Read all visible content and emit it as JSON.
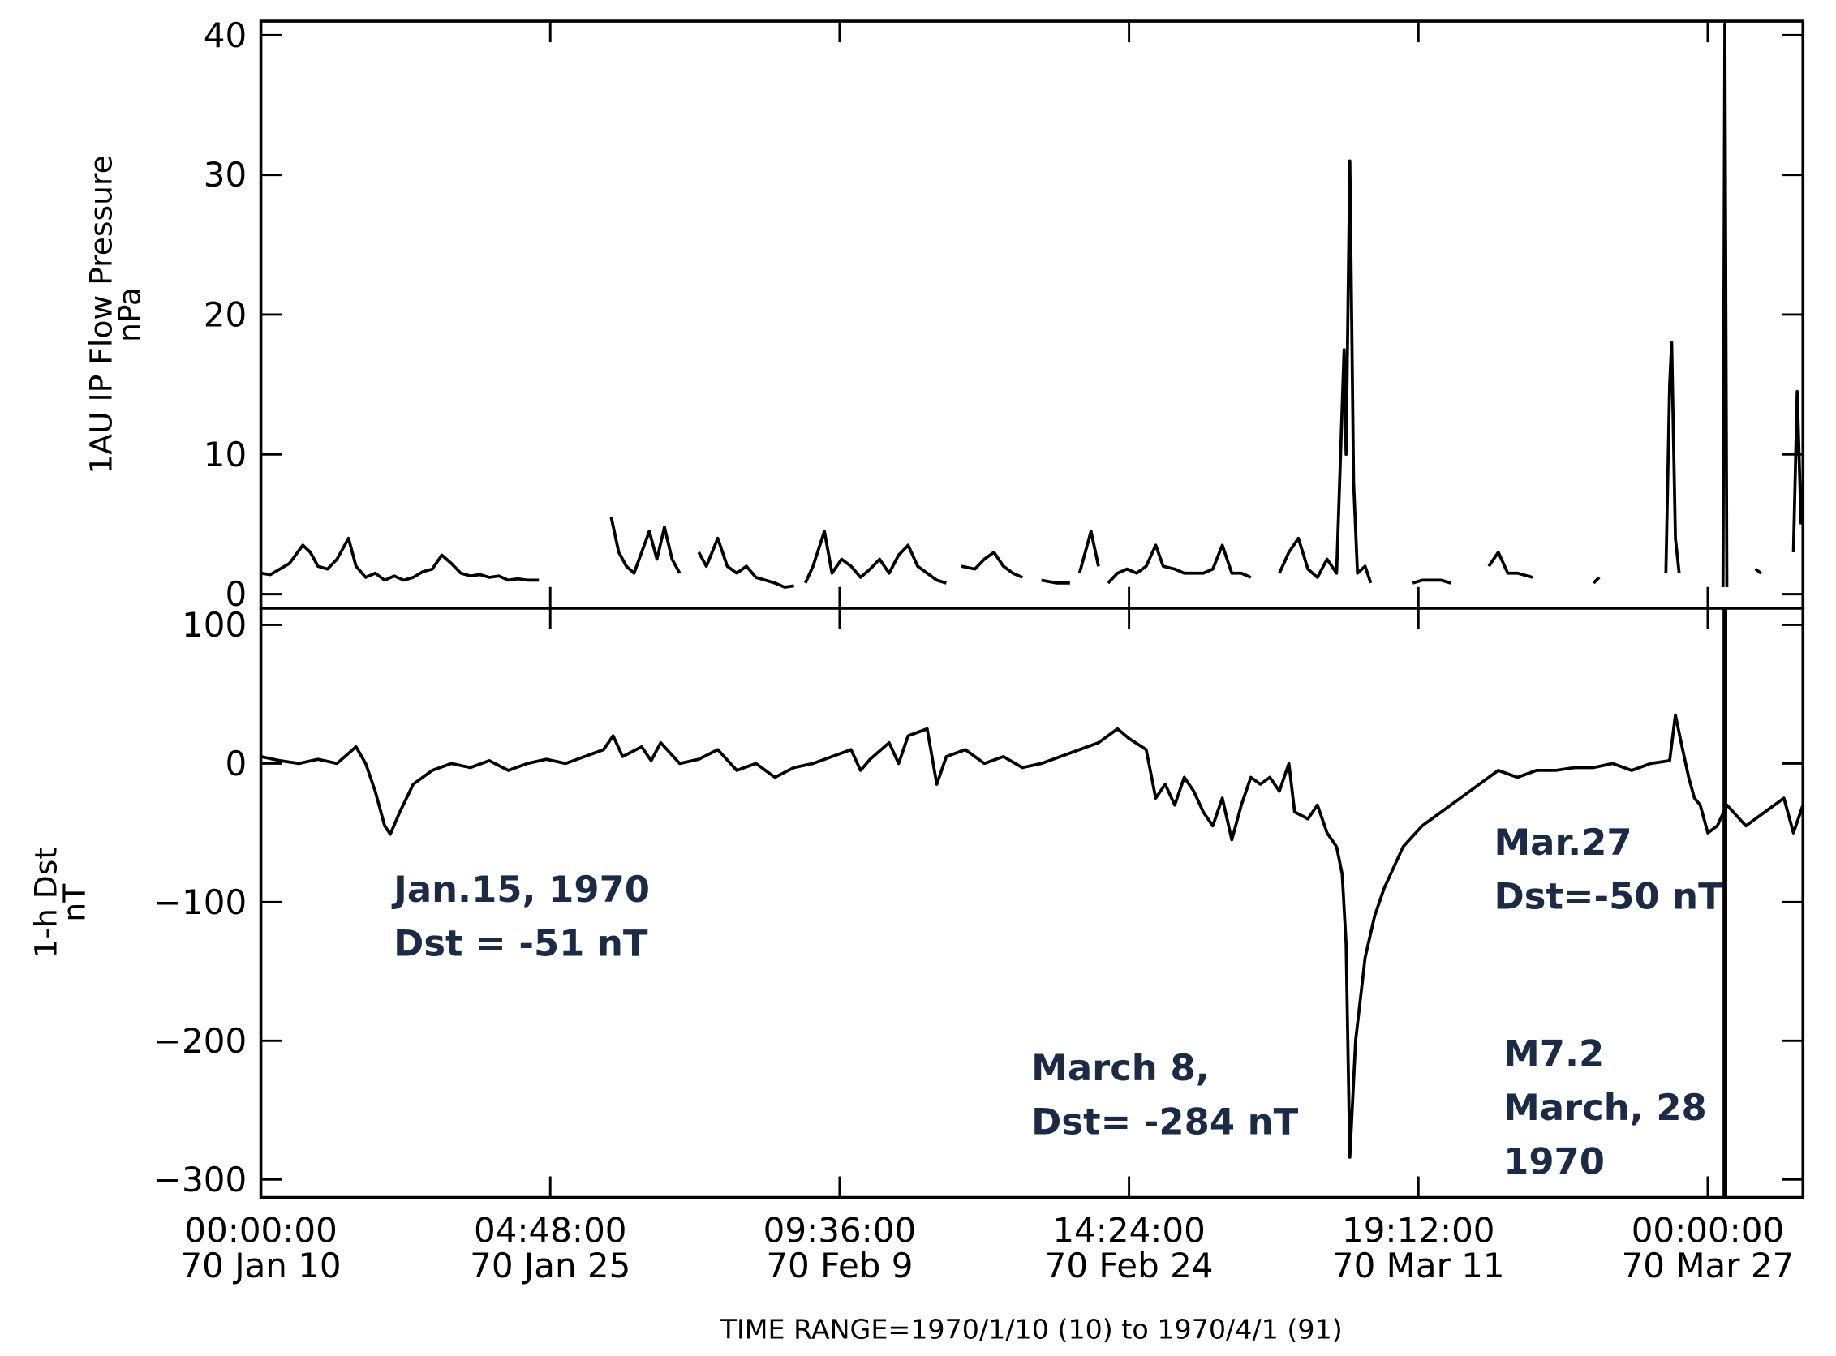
{
  "chart_data": [
    {
      "type": "line",
      "y_label": "1AU IP Flow Pressure\nnPa",
      "color": "#000000",
      "xlim": [
        10,
        91
      ],
      "ylim": [
        -1,
        41
      ],
      "yticks": [
        0,
        10,
        20,
        30,
        40
      ],
      "x": [
        10.0,
        10.5,
        11.0,
        11.5,
        12.2,
        12.6,
        13.0,
        13.5,
        14.0,
        14.6,
        15.0,
        15.5,
        16.0,
        16.5,
        17.0,
        17.5,
        18.0,
        18.5,
        19.0,
        19.5,
        20.0,
        20.5,
        21.0,
        21.5,
        22.0,
        22.5,
        23.0,
        23.5,
        24.0,
        24.6,
        26.5,
        28.4,
        28.8,
        29.2,
        29.6,
        30.0,
        30.4,
        30.8,
        31.2,
        31.6,
        32.0,
        32.5,
        33.0,
        33.4,
        34.0,
        34.5,
        35.0,
        35.5,
        36.0,
        36.5,
        37.0,
        37.5,
        38.0,
        38.3,
        38.6,
        39.0,
        39.6,
        40.0,
        40.5,
        41.0,
        41.5,
        42.0,
        42.5,
        43.0,
        43.5,
        44.0,
        44.5,
        45.0,
        45.5,
        46.0,
        46.4,
        46.8,
        47.5,
        48.0,
        48.5,
        49.0,
        49.5,
        50.0,
        50.5,
        51.0,
        51.8,
        52.5,
        52.8,
        53.0,
        53.3,
        53.6,
        54.0,
        54.2,
        54.5,
        55.0,
        55.5,
        56.0,
        56.5,
        57.0,
        57.4,
        58.0,
        58.5,
        59.0,
        59.5,
        60.0,
        60.5,
        61.0,
        61.5,
        62.0,
        62.8,
        63.5,
        64.0,
        64.5,
        65.0,
        65.5,
        66.0,
        66.5,
        66.9,
        67.0,
        67.2,
        67.4,
        67.6,
        68.0,
        68.3,
        69.5,
        70.5,
        71.0,
        72.0,
        72.5,
        73.5,
        74.5,
        75.0,
        75.5,
        76.0,
        76.8,
        77.4,
        78.0,
        79.0,
        80.0,
        80.3,
        81.0,
        81.6,
        82.7,
        83.8,
        84.0,
        84.1,
        84.3,
        84.5,
        85.6,
        86.8,
        86.9,
        87.0,
        87.8,
        88.5,
        88.8,
        89.6,
        90.5,
        90.7,
        90.9
      ],
      "values": [
        1.5,
        1.4,
        1.8,
        2.2,
        3.5,
        3.0,
        2.0,
        1.8,
        2.5,
        4.0,
        2.0,
        1.2,
        1.5,
        1.0,
        1.3,
        1.0,
        1.2,
        1.6,
        1.8,
        2.8,
        2.2,
        1.5,
        1.3,
        1.4,
        1.2,
        1.3,
        1.0,
        1.1,
        1.0,
        1.0,
        null,
        5.5,
        3.0,
        2.0,
        1.5,
        3.0,
        4.5,
        2.5,
        4.8,
        2.5,
        1.5,
        null,
        3.0,
        2.0,
        4.0,
        2.0,
        1.5,
        2.0,
        1.2,
        1.0,
        0.8,
        0.5,
        0.6,
        null,
        0.8,
        2.0,
        4.5,
        1.5,
        2.5,
        2.0,
        1.2,
        1.8,
        2.5,
        1.5,
        2.8,
        3.5,
        2.0,
        1.5,
        1.0,
        0.8,
        null,
        2.0,
        1.8,
        2.5,
        3.0,
        2.0,
        1.5,
        1.2,
        null,
        1.0,
        0.8,
        0.8,
        null,
        1.5,
        3.0,
        4.5,
        2.0,
        null,
        0.8,
        1.5,
        1.8,
        1.5,
        2.0,
        3.5,
        2.0,
        1.8,
        1.5,
        1.5,
        1.5,
        1.8,
        3.5,
        1.5,
        1.5,
        1.2,
        null,
        1.5,
        3.0,
        4.0,
        1.8,
        1.2,
        2.5,
        1.5,
        17.5,
        10.0,
        31.0,
        8.0,
        1.5,
        2.0,
        0.8,
        null,
        0.8,
        1.0,
        1.0,
        0.8,
        null,
        2.0,
        3.0,
        1.5,
        1.5,
        1.2,
        null,
        0.5,
        null,
        0.8,
        1.2,
        null,
        1.5,
        null,
        1.5,
        15.0,
        18.0,
        4.0,
        1.5,
        null,
        0.5,
        40.8,
        0.5,
        null,
        1.8,
        1.5,
        null,
        3.0,
        14.5,
        5.0
      ]
    },
    {
      "type": "line",
      "y_label": "1-h Dst\nnT",
      "x_label": "TIME RANGE=1970/1/10 (10) to 1970/4/1 (91)",
      "color": "#000000",
      "xlim": [
        10,
        91
      ],
      "ylim": [
        -313,
        112
      ],
      "yticks": [
        {
          "value": -300,
          "label": "−300"
        },
        {
          "value": -200,
          "label": "−200"
        },
        {
          "value": -100,
          "label": "−100"
        },
        0,
        100
      ],
      "xticks": [
        {
          "value": 10,
          "label": "00:00:00\n70 Jan 10"
        },
        {
          "value": 25.2,
          "label": "04:48:00\n70 Jan 25"
        },
        {
          "value": 40.4,
          "label": "09:36:00\n70 Feb  9"
        },
        {
          "value": 55.6,
          "label": "14:24:00\n70 Feb 24"
        },
        {
          "value": 70.8,
          "label": "19:12:00\n70 Mar 11"
        },
        {
          "value": 86,
          "label": "00:00:00\n70 Mar 27"
        }
      ],
      "event_lines": [
        86.9
      ],
      "annotations": [
        [
          "Jan.15, 1970",
          "Dst = -51 nT"
        ],
        [
          "March 8,",
          "Dst= -284 nT"
        ],
        [
          "Mar.27",
          "Dst=-50 nT"
        ],
        [
          "M7.2",
          "March, 28",
          "1970"
        ]
      ],
      "x": [
        10,
        11,
        12,
        13,
        14,
        15,
        15.5,
        16,
        16.5,
        16.8,
        17.3,
        18,
        19,
        20,
        21,
        22,
        23,
        24,
        25,
        26,
        27,
        28,
        28.5,
        29,
        30,
        30.5,
        31,
        32,
        33,
        34,
        35,
        36,
        37,
        38,
        39,
        40,
        41,
        41.5,
        42,
        43,
        43.5,
        44,
        45,
        45.5,
        46,
        47,
        48,
        49,
        50,
        51,
        52,
        53,
        54,
        55,
        55.6,
        56.5,
        57,
        57.5,
        58,
        58.5,
        59,
        59.5,
        60,
        60.5,
        61,
        61.5,
        62,
        62.5,
        63,
        63.5,
        64,
        64.3,
        65,
        65.5,
        66,
        66.5,
        66.8,
        67.0,
        67.2,
        67.5,
        68,
        68.5,
        69,
        69.5,
        70,
        71,
        72,
        73,
        74,
        75,
        76,
        77,
        78,
        79,
        80,
        81,
        82,
        83,
        84,
        84.3,
        84.6,
        85,
        85.3,
        85.6,
        86,
        86.5,
        87,
        88,
        89,
        90,
        90.5,
        91
      ],
      "values": [
        5,
        2,
        0,
        3,
        0,
        12,
        0,
        -20,
        -45,
        -51,
        -35,
        -15,
        -5,
        0,
        -3,
        2,
        -5,
        0,
        3,
        0,
        5,
        10,
        20,
        5,
        12,
        2,
        15,
        0,
        3,
        10,
        -5,
        0,
        -10,
        -3,
        0,
        5,
        10,
        -5,
        3,
        15,
        0,
        20,
        25,
        -15,
        5,
        10,
        0,
        5,
        -3,
        0,
        5,
        10,
        15,
        25,
        18,
        10,
        -25,
        -15,
        -30,
        -10,
        -20,
        -35,
        -45,
        -25,
        -55,
        -30,
        -10,
        -15,
        -10,
        -20,
        0,
        -35,
        -40,
        -30,
        -50,
        -60,
        -80,
        -130,
        -284,
        -200,
        -140,
        -110,
        -90,
        -75,
        -60,
        -45,
        -35,
        -25,
        -15,
        -5,
        -10,
        -5,
        -5,
        -3,
        -3,
        0,
        -5,
        0,
        2,
        35,
        15,
        -10,
        -25,
        -30,
        -50,
        -45,
        -30,
        -45,
        -35,
        -25,
        -50,
        -30
      ]
    }
  ]
}
